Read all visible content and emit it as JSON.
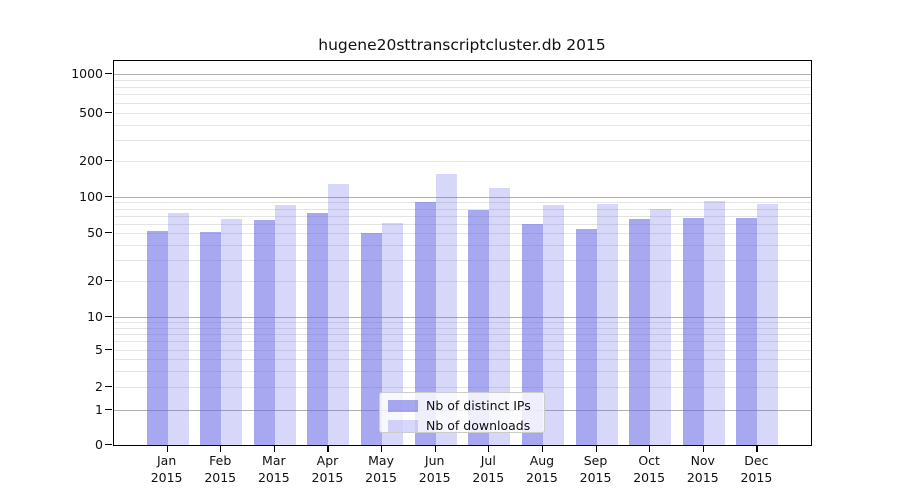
{
  "chart_data": {
    "type": "bar",
    "title": "hugene20sttranscriptcluster.db 2015",
    "categories": [
      "Jan",
      "Feb",
      "Mar",
      "Apr",
      "May",
      "Jun",
      "Jul",
      "Aug",
      "Sep",
      "Oct",
      "Nov",
      "Dec"
    ],
    "year_label": "2015",
    "series": [
      {
        "name": "Nb of distinct IPs",
        "color": "#6666e6",
        "opacity": 0.57,
        "values": [
          52,
          51,
          64,
          73,
          50,
          90,
          78,
          60,
          54,
          66,
          67,
          67
        ]
      },
      {
        "name": "Nb of downloads",
        "color": "#6666e6",
        "opacity": 0.26,
        "values": [
          73,
          66,
          85,
          128,
          61,
          155,
          118,
          85,
          88,
          80,
          92,
          88
        ]
      }
    ],
    "y_axis": {
      "tick_values": [
        0,
        1,
        2,
        5,
        10,
        20,
        50,
        100,
        200,
        500,
        1000
      ],
      "tick_labels": [
        "0",
        "1",
        "2",
        "5",
        "10",
        "20",
        "50",
        "100",
        "200",
        "500",
        "1000"
      ],
      "scale": "log-like",
      "ylim": [
        0,
        1300
      ]
    },
    "x_axis": {
      "tick_labels": [
        "Jan 2015",
        "Feb 2015",
        "Mar 2015",
        "Apr 2015",
        "May 2015",
        "Jun 2015",
        "Jul 2015",
        "Aug 2015",
        "Sep 2015",
        "Oct 2015",
        "Nov 2015",
        "Dec 2015"
      ]
    },
    "legend": {
      "position": "lower center",
      "entries": [
        "Nb of distinct IPs",
        "Nb of downloads"
      ]
    },
    "grid": {
      "on": true,
      "major_values": [
        1,
        10,
        100,
        1000
      ],
      "major_color": "#b0b0b0",
      "minor_color": "#e4e4e4",
      "axis_color": "#000000"
    }
  }
}
